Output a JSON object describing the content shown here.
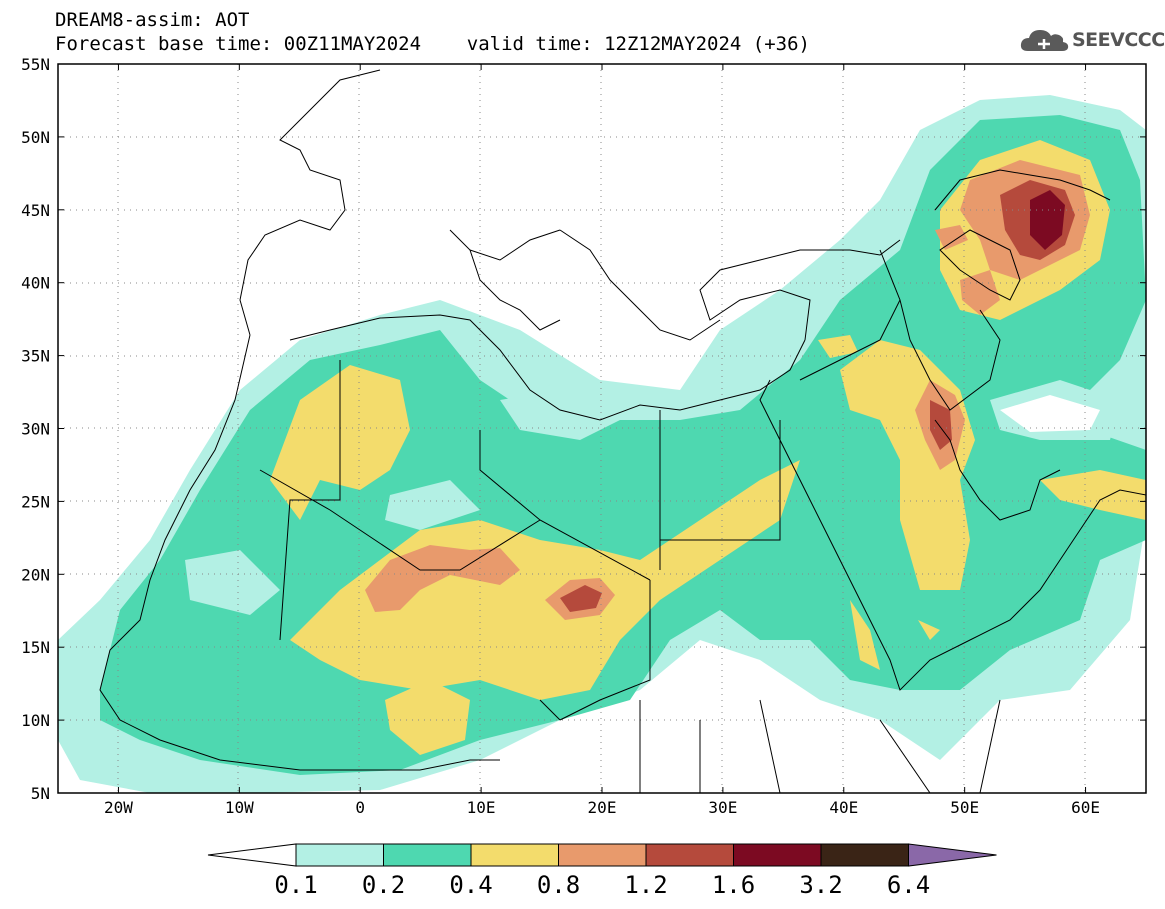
{
  "header": {
    "title_line1": "DREAM8-assim: AOT",
    "title_line2": "Forecast base time: 00Z11MAY2024    valid time: 12Z12MAY2024 (+36)"
  },
  "logo": {
    "text": "SEEVCCC",
    "icon": "cloud-icon",
    "color": "#5a5a5a"
  },
  "map": {
    "y_axis_labels": [
      "55N",
      "50N",
      "45N",
      "40N",
      "35N",
      "30N",
      "25N",
      "20N",
      "15N",
      "10N",
      "5N"
    ],
    "x_axis_labels": [
      "20W",
      "10W",
      "0",
      "10E",
      "20E",
      "30E",
      "40E",
      "50E",
      "60E"
    ],
    "lon_range": [
      -25,
      65
    ],
    "lat_range": [
      5,
      55
    ]
  },
  "colorbar": {
    "labels": [
      "0.1",
      "0.2",
      "0.4",
      "0.8",
      "1.2",
      "1.6",
      "3.2",
      "6.4"
    ],
    "colors": [
      "#ffffff",
      "#b3f0e4",
      "#4ed8b0",
      "#f3dc6c",
      "#e89a6c",
      "#b54a3c",
      "#7c0a22",
      "#3a2416",
      "#8a68a8"
    ]
  }
}
